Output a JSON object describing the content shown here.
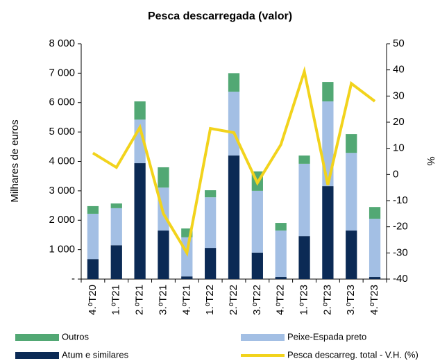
{
  "chart_data": {
    "type": "bar_line",
    "title": "Pesca descarregada (valor)",
    "ylabel": "Milhares de euros",
    "y2label": "%",
    "categories": [
      "4.ºT20",
      "1.ºT21",
      "2.ºT21",
      "3.ºT21",
      "4.ºT21",
      "1.ºT22",
      "2.ºT22",
      "3.ºT22",
      "4.ºT22",
      "1.ºT23",
      "2.ºT23",
      "3.ºT23",
      "4.ºT23"
    ],
    "series": [
      {
        "name": "Atum e similares",
        "color": "#0b2a55",
        "type": "bar",
        "values": [
          680,
          1150,
          3940,
          1650,
          90,
          1060,
          4200,
          900,
          70,
          1460,
          3160,
          1650,
          70
        ]
      },
      {
        "name": "Peixe-Espada preto",
        "color": "#a3bfe4",
        "type": "bar",
        "values": [
          1540,
          1260,
          1480,
          1460,
          1330,
          1720,
          2170,
          2100,
          1580,
          2460,
          2880,
          2640,
          1980
        ]
      },
      {
        "name": "Outros",
        "color": "#52a874",
        "type": "bar",
        "values": [
          260,
          160,
          620,
          690,
          300,
          240,
          630,
          660,
          260,
          280,
          660,
          640,
          400
        ]
      },
      {
        "name": "Pesca descarreg. total - V.H. (%)",
        "color": "#f2d31c",
        "type": "line",
        "axis": "y2",
        "values": [
          8.2,
          2.7,
          18,
          -15,
          -30,
          17.6,
          16,
          -3.2,
          11.4,
          39.4,
          -4,
          34.8,
          28
        ]
      }
    ],
    "ylim": [
      0,
      8000
    ],
    "yticks": [
      {
        "value": 0,
        "label": "-"
      },
      {
        "value": 1000,
        "label": "1 000"
      },
      {
        "value": 2000,
        "label": "2 000"
      },
      {
        "value": 3000,
        "label": "3 000"
      },
      {
        "value": 4000,
        "label": "4 000"
      },
      {
        "value": 5000,
        "label": "5 000"
      },
      {
        "value": 6000,
        "label": "6 000"
      },
      {
        "value": 7000,
        "label": "7 000"
      },
      {
        "value": 8000,
        "label": "8 000"
      }
    ],
    "y2lim": [
      -40,
      50
    ],
    "y2ticks": [
      -40,
      -30,
      -20,
      -10,
      0,
      10,
      20,
      30,
      40,
      50
    ],
    "grid": false
  }
}
